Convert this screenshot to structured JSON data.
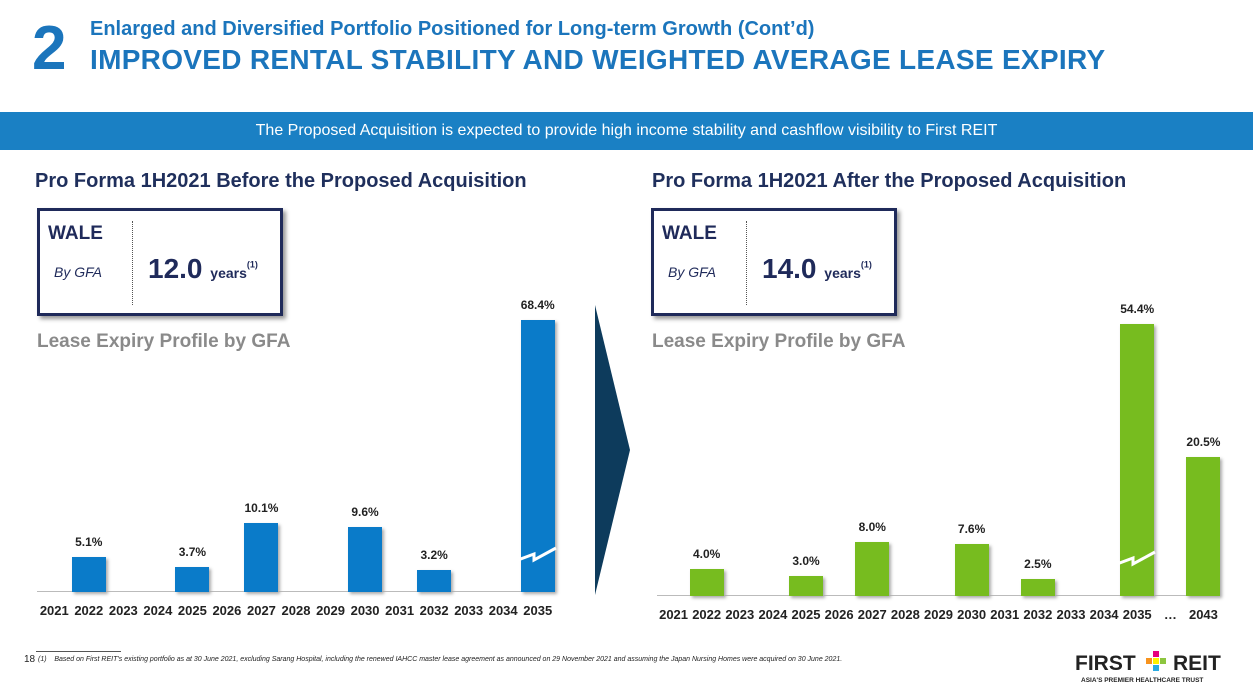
{
  "header": {
    "section_number": "2",
    "subtitle": "Enlarged and Diversified Portfolio Positioned for Long-term Growth (Cont’d)",
    "title": "IMPROVED RENTAL STABILITY AND WEIGHTED AVERAGE LEASE EXPIRY"
  },
  "banner": "The Proposed Acquisition is expected to provide high income stability and cashflow visibility to First REIT",
  "panels": [
    {
      "heading": "Pro Forma 1H2021 Before the Proposed Acquisition",
      "wale_label": "WALE",
      "wale_basis": "By GFA",
      "wale_value": "12.0",
      "wale_unit": "years",
      "wale_note": "(1)",
      "chart_title": "Lease Expiry Profile by GFA"
    },
    {
      "heading": "Pro Forma 1H2021 After the Proposed Acquisition",
      "wale_label": "WALE",
      "wale_basis": "By GFA",
      "wale_value": "14.0",
      "wale_unit": "years",
      "wale_note": "(1)",
      "chart_title": "Lease Expiry Profile by GFA"
    }
  ],
  "chart_data": [
    {
      "type": "bar",
      "title": "Lease Expiry Profile by GFA (Before)",
      "color": "#0a7bc9",
      "categories": [
        "2021",
        "2022",
        "2023",
        "2024",
        "2025",
        "2026",
        "2027",
        "2028",
        "2029",
        "2030",
        "2031",
        "2032",
        "2033",
        "2034",
        "2035"
      ],
      "values": [
        null,
        5.1,
        null,
        null,
        3.7,
        null,
        10.1,
        null,
        null,
        9.6,
        null,
        3.2,
        null,
        null,
        68.4
      ],
      "labels": [
        null,
        "5.1%",
        null,
        null,
        "3.7%",
        null,
        "10.1%",
        null,
        null,
        "9.6%",
        null,
        "3.2%",
        null,
        null,
        "68.4%"
      ],
      "broken": [
        14
      ],
      "unit": "%"
    },
    {
      "type": "bar",
      "title": "Lease Expiry Profile by GFA (After)",
      "color": "#77bc1f",
      "categories": [
        "2021",
        "2022",
        "2023",
        "2024",
        "2025",
        "2026",
        "2027",
        "2028",
        "2029",
        "2030",
        "2031",
        "2032",
        "2033",
        "2034",
        "2035",
        "…",
        "2043"
      ],
      "values": [
        null,
        4.0,
        null,
        null,
        3.0,
        null,
        8.0,
        null,
        null,
        7.6,
        null,
        2.5,
        null,
        null,
        54.4,
        null,
        20.5
      ],
      "labels": [
        null,
        "4.0%",
        null,
        null,
        "3.0%",
        null,
        "8.0%",
        null,
        null,
        "7.6%",
        null,
        "2.5%",
        null,
        null,
        "54.4%",
        null,
        "20.5%"
      ],
      "broken": [
        14
      ],
      "unit": "%"
    }
  ],
  "footer": {
    "page": "18",
    "note_marker": "(1)",
    "note": "Based on First REIT’s existing portfolio as at 30 June 2021, excluding Sarang Hospital, including the renewed IAHCC master lease agreement as announced on 29 November 2021 and assuming the Japan Nursing Homes were acquired on 30 June 2021."
  },
  "logo": {
    "name": "FIRST REIT",
    "tagline": "ASIA'S PREMIER HEALTHCARE TRUST"
  }
}
